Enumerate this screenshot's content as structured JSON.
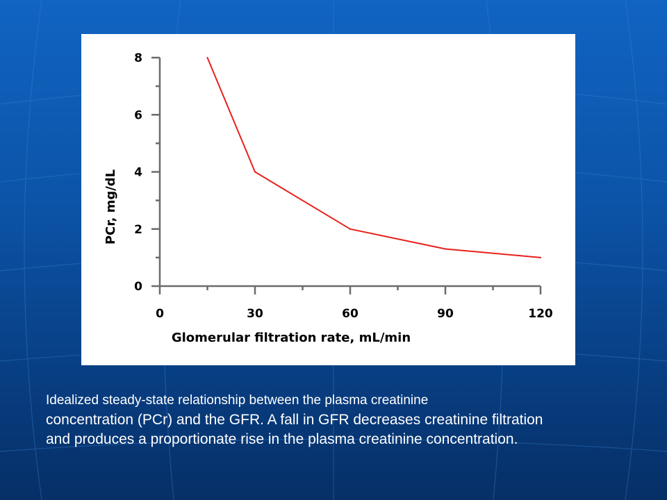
{
  "slide": {
    "caption_lines": [
      "Idealized steady-state relationship between the plasma creatinine",
      "concentration (PCr) and the GFR. A fall in GFR decreases creatinine filtration",
      "and produces a proportionate rise in the plasma creatinine concentration."
    ],
    "background_color": "#0c54a8",
    "text_color": "#ffffff"
  },
  "chart_data": {
    "type": "line",
    "title": "",
    "xlabel": "Glomerular filtration rate, mL/min",
    "ylabel": "PCr, mg/dL",
    "xlim": [
      0,
      120
    ],
    "ylim": [
      0,
      8
    ],
    "x_ticks": [
      0,
      30,
      60,
      90,
      120
    ],
    "y_ticks": [
      0,
      2,
      4,
      6,
      8
    ],
    "x_minor_step": 15,
    "y_minor_step": 1,
    "grid": false,
    "series": [
      {
        "name": "PCr",
        "color": "#e8201c",
        "points": [
          {
            "x": 15,
            "y": 8
          },
          {
            "x": 30,
            "y": 4
          },
          {
            "x": 60,
            "y": 2
          },
          {
            "x": 90,
            "y": 1.3
          },
          {
            "x": 120,
            "y": 1
          }
        ]
      }
    ]
  }
}
